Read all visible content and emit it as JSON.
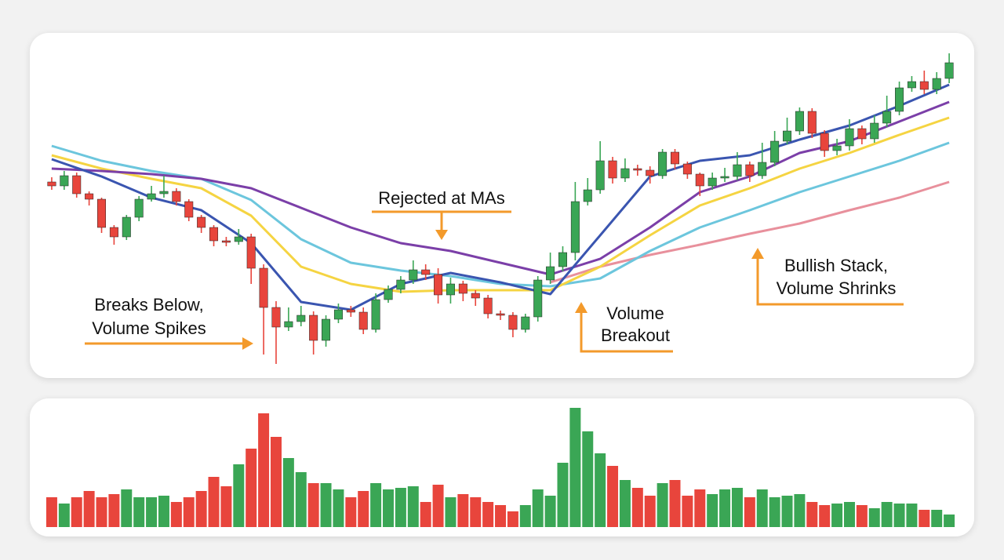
{
  "chart_data": {
    "type": "candlestick",
    "xlim": [
      -0.5,
      73
    ],
    "ylim": [
      0,
      440
    ],
    "candles": {
      "up_color": "#3aa655",
      "down_color": "#e8453c",
      "open": [
        250,
        245,
        258,
        235,
        228,
        192,
        180,
        205,
        228,
        235,
        238,
        225,
        205,
        192,
        175,
        174,
        180,
        140,
        90,
        65,
        72,
        80,
        48,
        75,
        87,
        84,
        62,
        100,
        113,
        125,
        138,
        132,
        106,
        120,
        108,
        102,
        82,
        80,
        62,
        78,
        125,
        142,
        160,
        225,
        240,
        277,
        255,
        267,
        265,
        258,
        288,
        273,
        260,
        245,
        255,
        257,
        272,
        258,
        275,
        302,
        315,
        340,
        312,
        290,
        296,
        318,
        305,
        325,
        340,
        370,
        378,
        368,
        382
      ],
      "high": [
        256,
        264,
        262,
        238,
        230,
        195,
        208,
        232,
        245,
        258,
        242,
        228,
        208,
        195,
        180,
        190,
        184,
        145,
        98,
        90,
        92,
        85,
        80,
        95,
        92,
        90,
        108,
        118,
        130,
        150,
        145,
        140,
        128,
        124,
        112,
        106,
        86,
        84,
        82,
        130,
        160,
        168,
        250,
        255,
        302,
        282,
        280,
        272,
        270,
        292,
        292,
        276,
        262,
        262,
        268,
        288,
        276,
        300,
        315,
        332,
        345,
        344,
        316,
        305,
        330,
        322,
        335,
        360,
        378,
        385,
        392,
        390,
        414
      ],
      "low": [
        240,
        240,
        230,
        220,
        185,
        170,
        176,
        200,
        225,
        230,
        220,
        200,
        185,
        168,
        168,
        170,
        120,
        30,
        18,
        60,
        66,
        30,
        40,
        70,
        78,
        56,
        58,
        96,
        108,
        120,
        125,
        95,
        95,
        98,
        92,
        76,
        74,
        52,
        58,
        72,
        120,
        136,
        150,
        220,
        235,
        248,
        250,
        258,
        248,
        254,
        266,
        254,
        232,
        240,
        250,
        252,
        250,
        254,
        270,
        298,
        310,
        306,
        282,
        284,
        290,
        298,
        300,
        320,
        335,
        365,
        362,
        362,
        376
      ],
      "close": [
        245,
        258,
        235,
        228,
        192,
        180,
        205,
        228,
        235,
        238,
        225,
        205,
        192,
        175,
        174,
        180,
        140,
        90,
        65,
        72,
        80,
        48,
        75,
        87,
        84,
        62,
        100,
        113,
        125,
        138,
        132,
        106,
        120,
        108,
        102,
        82,
        80,
        62,
        78,
        125,
        142,
        160,
        225,
        240,
        277,
        255,
        267,
        265,
        258,
        288,
        273,
        260,
        245,
        255,
        257,
        272,
        258,
        275,
        302,
        315,
        340,
        312,
        290,
        296,
        318,
        305,
        325,
        340,
        370,
        378,
        368,
        382,
        402
      ]
    },
    "ma_series": [
      {
        "color": "#e8909c",
        "x": [
          40,
          44,
          48,
          52,
          56,
          60,
          64,
          68,
          72
        ],
        "values": [
          122,
          142,
          157,
          170,
          184,
          197,
          214,
          230,
          250
        ]
      },
      {
        "color": "#6cc6dd",
        "x": [
          0,
          4,
          8,
          12,
          16,
          20,
          24,
          28,
          32,
          36,
          40,
          44,
          48,
          52,
          56,
          60,
          64,
          68,
          72
        ],
        "values": [
          296,
          277,
          264,
          254,
          227,
          177,
          147,
          137,
          130,
          120,
          117,
          127,
          162,
          192,
          214,
          237,
          257,
          277,
          300
        ]
      },
      {
        "color": "#f5d442",
        "x": [
          0,
          4,
          8,
          12,
          16,
          20,
          24,
          28,
          32,
          36,
          40,
          44,
          48,
          52,
          56,
          60,
          64,
          68,
          72
        ],
        "values": [
          284,
          267,
          254,
          242,
          207,
          142,
          120,
          110,
          112,
          112,
          112,
          142,
          182,
          220,
          242,
          267,
          287,
          310,
          332
        ]
      },
      {
        "color": "#7b3fa8",
        "x": [
          0,
          4,
          8,
          12,
          16,
          20,
          24,
          28,
          32,
          36,
          40,
          44,
          48,
          52,
          56,
          60,
          64,
          68,
          72
        ],
        "values": [
          267,
          264,
          260,
          254,
          242,
          217,
          192,
          172,
          162,
          147,
          132,
          152,
          192,
          237,
          257,
          287,
          302,
          327,
          352
        ]
      },
      {
        "color": "#3a55b0",
        "x": [
          0,
          4,
          8,
          12,
          16,
          20,
          24,
          28,
          32,
          36,
          40,
          44,
          48,
          52,
          56,
          60,
          64,
          68,
          72
        ],
        "values": [
          279,
          257,
          230,
          214,
          172,
          97,
          87,
          120,
          134,
          122,
          107,
          182,
          257,
          277,
          284,
          304,
          322,
          347,
          374
        ]
      }
    ],
    "volume": {
      "ylim": [
        0,
        160
      ],
      "values": [
        38,
        30,
        38,
        46,
        38,
        42,
        48,
        38,
        38,
        40,
        32,
        38,
        46,
        64,
        52,
        80,
        100,
        145,
        115,
        88,
        70,
        56,
        56,
        48,
        38,
        46,
        56,
        48,
        50,
        52,
        32,
        54,
        38,
        42,
        38,
        32,
        28,
        20,
        28,
        48,
        40,
        82,
        152,
        122,
        94,
        78,
        60,
        50,
        40,
        56,
        60,
        40,
        48,
        42,
        48,
        50,
        38,
        48,
        38,
        40,
        42,
        32,
        28,
        30,
        32,
        28,
        24,
        32,
        30,
        30,
        22,
        22,
        16
      ]
    },
    "annotations": [
      {
        "lines": [
          "Rejected at MAs"
        ]
      },
      {
        "lines": [
          "Breaks Below,",
          "Volume Spikes"
        ]
      },
      {
        "lines": [
          "Volume",
          "Breakout"
        ]
      },
      {
        "lines": [
          "Bullish Stack,",
          "Volume Shrinks"
        ]
      }
    ]
  }
}
